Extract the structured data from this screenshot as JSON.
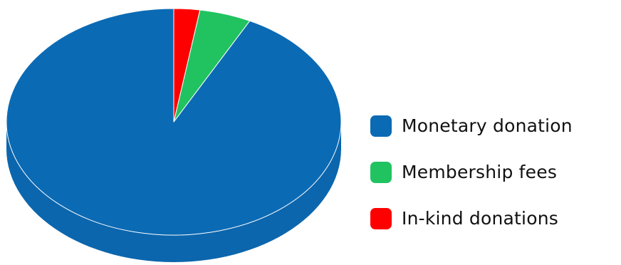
{
  "chart_data": {
    "type": "pie",
    "style": "3d",
    "categories": [
      "Monetary donation",
      "Membership fees",
      "In-kind donations"
    ],
    "values": [
      92.5,
      5.0,
      2.5
    ],
    "colors": [
      "#0b6ab4",
      "#21c361",
      "#ff0000"
    ],
    "legend_position": "right",
    "slice_border_color": "#ffffff"
  }
}
